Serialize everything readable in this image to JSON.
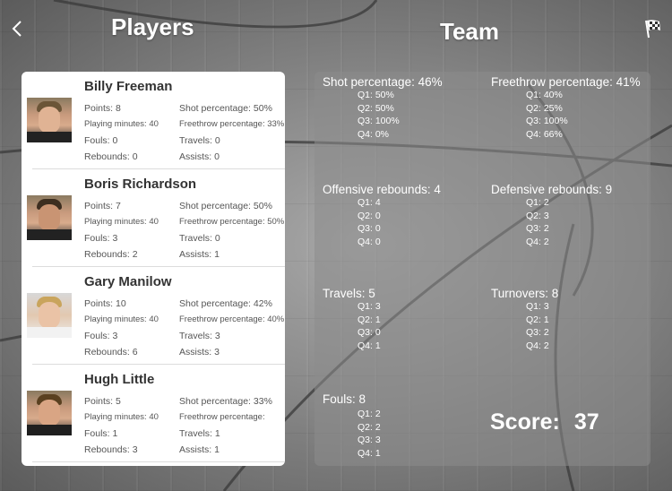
{
  "titles": {
    "players": "Players",
    "team": "Team"
  },
  "nav": {
    "back_icon": "chevron-left-icon",
    "finish_icon": "checkered-flag-icon"
  },
  "colors": {
    "panel": "#ffffff",
    "text_dark": "#333333",
    "text_stat": "#555555",
    "accent": "#ffffff"
  },
  "players": [
    {
      "name": "Billy Freeman",
      "points": "Points: 8",
      "minutes": "Playing minutes: 40",
      "fouls": "Fouls: 0",
      "rebounds": "Rebounds: 0",
      "shot": "Shot percentage: 50%",
      "freethrow": "Freethrow percentage: 33%",
      "travels": "Travels: 0",
      "assists": "Assists: 0"
    },
    {
      "name": "Boris Richardson",
      "points": "Points: 7",
      "minutes": "Playing minutes: 40",
      "fouls": "Fouls: 3",
      "rebounds": "Rebounds: 2",
      "shot": "Shot percentage: 50%",
      "freethrow": "Freethrow percentage: 50%",
      "travels": "Travels: 0",
      "assists": "Assists: 1"
    },
    {
      "name": "Gary Manilow",
      "points": "Points: 10",
      "minutes": "Playing minutes: 40",
      "fouls": "Fouls: 3",
      "rebounds": "Rebounds: 6",
      "shot": "Shot percentage: 42%",
      "freethrow": "Freethrow percentage: 40%",
      "travels": "Travels: 3",
      "assists": "Assists: 3"
    },
    {
      "name": "Hugh Little",
      "points": "Points: 5",
      "minutes": "Playing minutes: 40",
      "fouls": "Fouls: 1",
      "rebounds": "Rebounds: 3",
      "shot": "Shot percentage: 33%",
      "freethrow": "Freethrow percentage:",
      "travels": "Travels: 1",
      "assists": "Assists: 1"
    }
  ],
  "team": {
    "shot": {
      "head": "Shot percentage: 46%",
      "q": [
        "Q1: 50%",
        "Q2: 50%",
        "Q3: 100%",
        "Q4: 0%"
      ]
    },
    "freethrow": {
      "head": "Freethrow percentage: 41%",
      "q": [
        "Q1: 40%",
        "Q2: 25%",
        "Q3: 100%",
        "Q4: 66%"
      ]
    },
    "offensive": {
      "head": "Offensive rebounds: 4",
      "q": [
        "Q1: 4",
        "Q2: 0",
        "Q3: 0",
        "Q4: 0"
      ]
    },
    "defensive": {
      "head": "Defensive rebounds: 9",
      "q": [
        "Q1: 2",
        "Q2: 3",
        "Q3: 2",
        "Q4: 2"
      ]
    },
    "travels": {
      "head": "Travels: 5",
      "q": [
        "Q1: 3",
        "Q2: 1",
        "Q3: 0",
        "Q4: 1"
      ]
    },
    "turnovers": {
      "head": "Turnovers: 8",
      "q": [
        "Q1: 3",
        "Q2: 1",
        "Q3: 2",
        "Q4: 2"
      ]
    },
    "fouls": {
      "head": "Fouls: 8",
      "q": [
        "Q1: 2",
        "Q2: 2",
        "Q3: 3",
        "Q4: 1"
      ]
    },
    "score_label": "Score:",
    "score_value": "37"
  }
}
